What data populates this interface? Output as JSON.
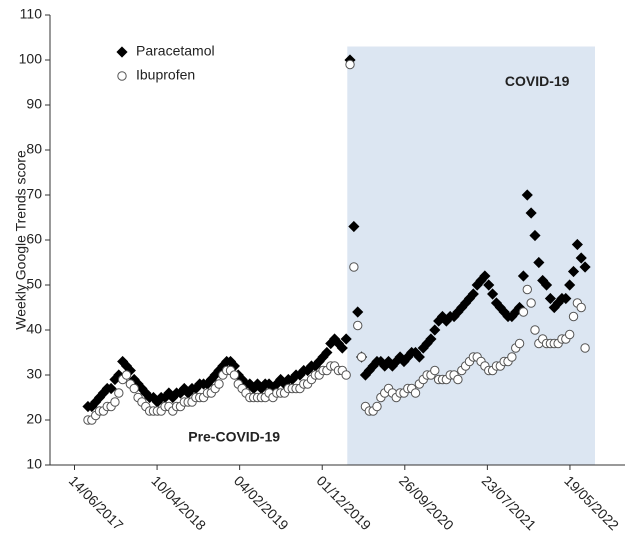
{
  "chart_data": {
    "type": "scatter",
    "ylabel": "Weekly Google Trends score",
    "ylim": [
      10,
      110
    ],
    "yticks": [
      10,
      20,
      30,
      40,
      50,
      60,
      70,
      80,
      90,
      100,
      110
    ],
    "xlim": [
      "17/03/2017",
      "05/12/2022"
    ],
    "xticks": [
      "14/06/2017",
      "10/04/2018",
      "04/02/2019",
      "01/12/2019",
      "26/09/2020",
      "23/07/2021",
      "19/05/2022"
    ],
    "legend": "upper left",
    "shaded_region": {
      "x": [
        "01/03/2020",
        "18/08/2022"
      ],
      "y": [
        10,
        103
      ],
      "color": "#dce6f2"
    },
    "annotations": [
      {
        "text": "COVID-19",
        "x": "20/01/2022",
        "y": 95
      },
      {
        "text": "Pre-COVID-19",
        "x": "15/01/2019",
        "y": 16
      }
    ],
    "x": [
      "02/08/2017",
      "16/08/2017",
      "30/08/2017",
      "13/09/2017",
      "27/09/2017",
      "11/10/2017",
      "25/10/2017",
      "08/11/2017",
      "22/11/2017",
      "06/12/2017",
      "20/12/2017",
      "03/01/2018",
      "17/01/2018",
      "31/01/2018",
      "14/02/2018",
      "28/02/2018",
      "14/03/2018",
      "28/03/2018",
      "11/04/2018",
      "25/04/2018",
      "09/05/2018",
      "23/05/2018",
      "06/06/2018",
      "20/06/2018",
      "04/07/2018",
      "18/07/2018",
      "01/08/2018",
      "15/08/2018",
      "29/08/2018",
      "12/09/2018",
      "26/09/2018",
      "10/10/2018",
      "24/10/2018",
      "07/11/2018",
      "21/11/2018",
      "05/12/2018",
      "19/12/2018",
      "02/01/2019",
      "16/01/2019",
      "30/01/2019",
      "13/02/2019",
      "27/02/2019",
      "13/03/2019",
      "27/03/2019",
      "10/04/2019",
      "24/04/2019",
      "08/05/2019",
      "22/05/2019",
      "05/06/2019",
      "19/06/2019",
      "03/07/2019",
      "17/07/2019",
      "31/07/2019",
      "14/08/2019",
      "28/08/2019",
      "11/09/2019",
      "25/09/2019",
      "09/10/2019",
      "23/10/2019",
      "06/11/2019",
      "20/11/2019",
      "04/12/2019",
      "18/12/2019",
      "01/01/2020",
      "15/01/2020",
      "29/01/2020",
      "12/02/2020",
      "26/02/2020",
      "11/03/2020",
      "25/03/2020",
      "08/04/2020",
      "22/04/2020",
      "06/05/2020",
      "20/05/2020",
      "03/06/2020",
      "17/06/2020",
      "01/07/2020",
      "15/07/2020",
      "29/07/2020",
      "12/08/2020",
      "26/08/2020",
      "09/09/2020",
      "23/09/2020",
      "07/10/2020",
      "21/10/2020",
      "04/11/2020",
      "18/11/2020",
      "02/12/2020",
      "16/12/2020",
      "30/12/2020",
      "13/01/2021",
      "27/01/2021",
      "10/02/2021",
      "24/02/2021",
      "10/03/2021",
      "24/03/2021",
      "07/04/2021",
      "21/04/2021",
      "05/05/2021",
      "19/05/2021",
      "02/06/2021",
      "16/06/2021",
      "30/06/2021",
      "14/07/2021",
      "28/07/2021",
      "11/08/2021",
      "25/08/2021",
      "08/09/2021",
      "22/09/2021",
      "06/10/2021",
      "20/10/2021",
      "03/11/2021",
      "17/11/2021",
      "01/12/2021",
      "15/12/2021",
      "29/12/2021",
      "12/01/2022",
      "26/01/2022",
      "09/02/2022",
      "23/02/2022",
      "09/03/2022",
      "23/03/2022",
      "06/04/2022",
      "20/04/2022",
      "04/05/2022",
      "18/05/2022",
      "01/06/2022",
      "15/06/2022",
      "29/06/2022",
      "13/07/2022"
    ],
    "series": [
      {
        "name": "Paracetamol",
        "marker": "diamond",
        "color": "#000000",
        "edgecolor": "#000000",
        "values": [
          23,
          23,
          24,
          25,
          26,
          27,
          27,
          29,
          30,
          33,
          32,
          31,
          29,
          28,
          27,
          26,
          25,
          25,
          24,
          25,
          25,
          26,
          25,
          26,
          26,
          27,
          26,
          27,
          27,
          28,
          28,
          28,
          29,
          30,
          31,
          32,
          33,
          33,
          32,
          30,
          29,
          28,
          28,
          27,
          28,
          27,
          28,
          28,
          27,
          28,
          29,
          28,
          29,
          29,
          30,
          30,
          31,
          31,
          32,
          32,
          33,
          34,
          35,
          37,
          38,
          37,
          36,
          38,
          100,
          63,
          44,
          34,
          30,
          31,
          32,
          33,
          33,
          32,
          33,
          32,
          33,
          34,
          33,
          34,
          35,
          35,
          34,
          36,
          37,
          38,
          40,
          42,
          43,
          42,
          43,
          43,
          44,
          45,
          46,
          47,
          48,
          50,
          51,
          52,
          50,
          48,
          46,
          45,
          44,
          43,
          43,
          44,
          45,
          52,
          70,
          66,
          61,
          55,
          51,
          50,
          47,
          45,
          46,
          47,
          47,
          50,
          53,
          59,
          56,
          54
        ]
      },
      {
        "name": "Ibuprofen",
        "marker": "circle",
        "color": "#ffffff",
        "edgecolor": "#555555",
        "values": [
          20,
          20,
          21,
          22,
          22,
          23,
          23,
          24,
          26,
          29,
          30,
          28,
          27,
          25,
          24,
          23,
          22,
          22,
          22,
          22,
          23,
          23,
          22,
          23,
          23,
          24,
          24,
          24,
          25,
          25,
          25,
          26,
          26,
          27,
          28,
          30,
          31,
          31,
          30,
          28,
          27,
          26,
          25,
          25,
          25,
          25,
          25,
          26,
          25,
          26,
          26,
          26,
          27,
          27,
          27,
          27,
          28,
          28,
          29,
          30,
          30,
          31,
          31,
          32,
          32,
          31,
          31,
          30,
          99,
          54,
          41,
          34,
          23,
          22,
          22,
          23,
          25,
          26,
          27,
          26,
          25,
          26,
          26,
          27,
          27,
          26,
          28,
          29,
          30,
          30,
          31,
          29,
          29,
          29,
          30,
          30,
          29,
          31,
          32,
          33,
          34,
          34,
          33,
          32,
          31,
          31,
          32,
          32,
          33,
          33,
          34,
          36,
          37,
          44,
          49,
          46,
          40,
          37,
          38,
          37,
          37,
          37,
          37,
          38,
          38,
          39,
          43,
          46,
          45,
          36
        ]
      }
    ]
  }
}
